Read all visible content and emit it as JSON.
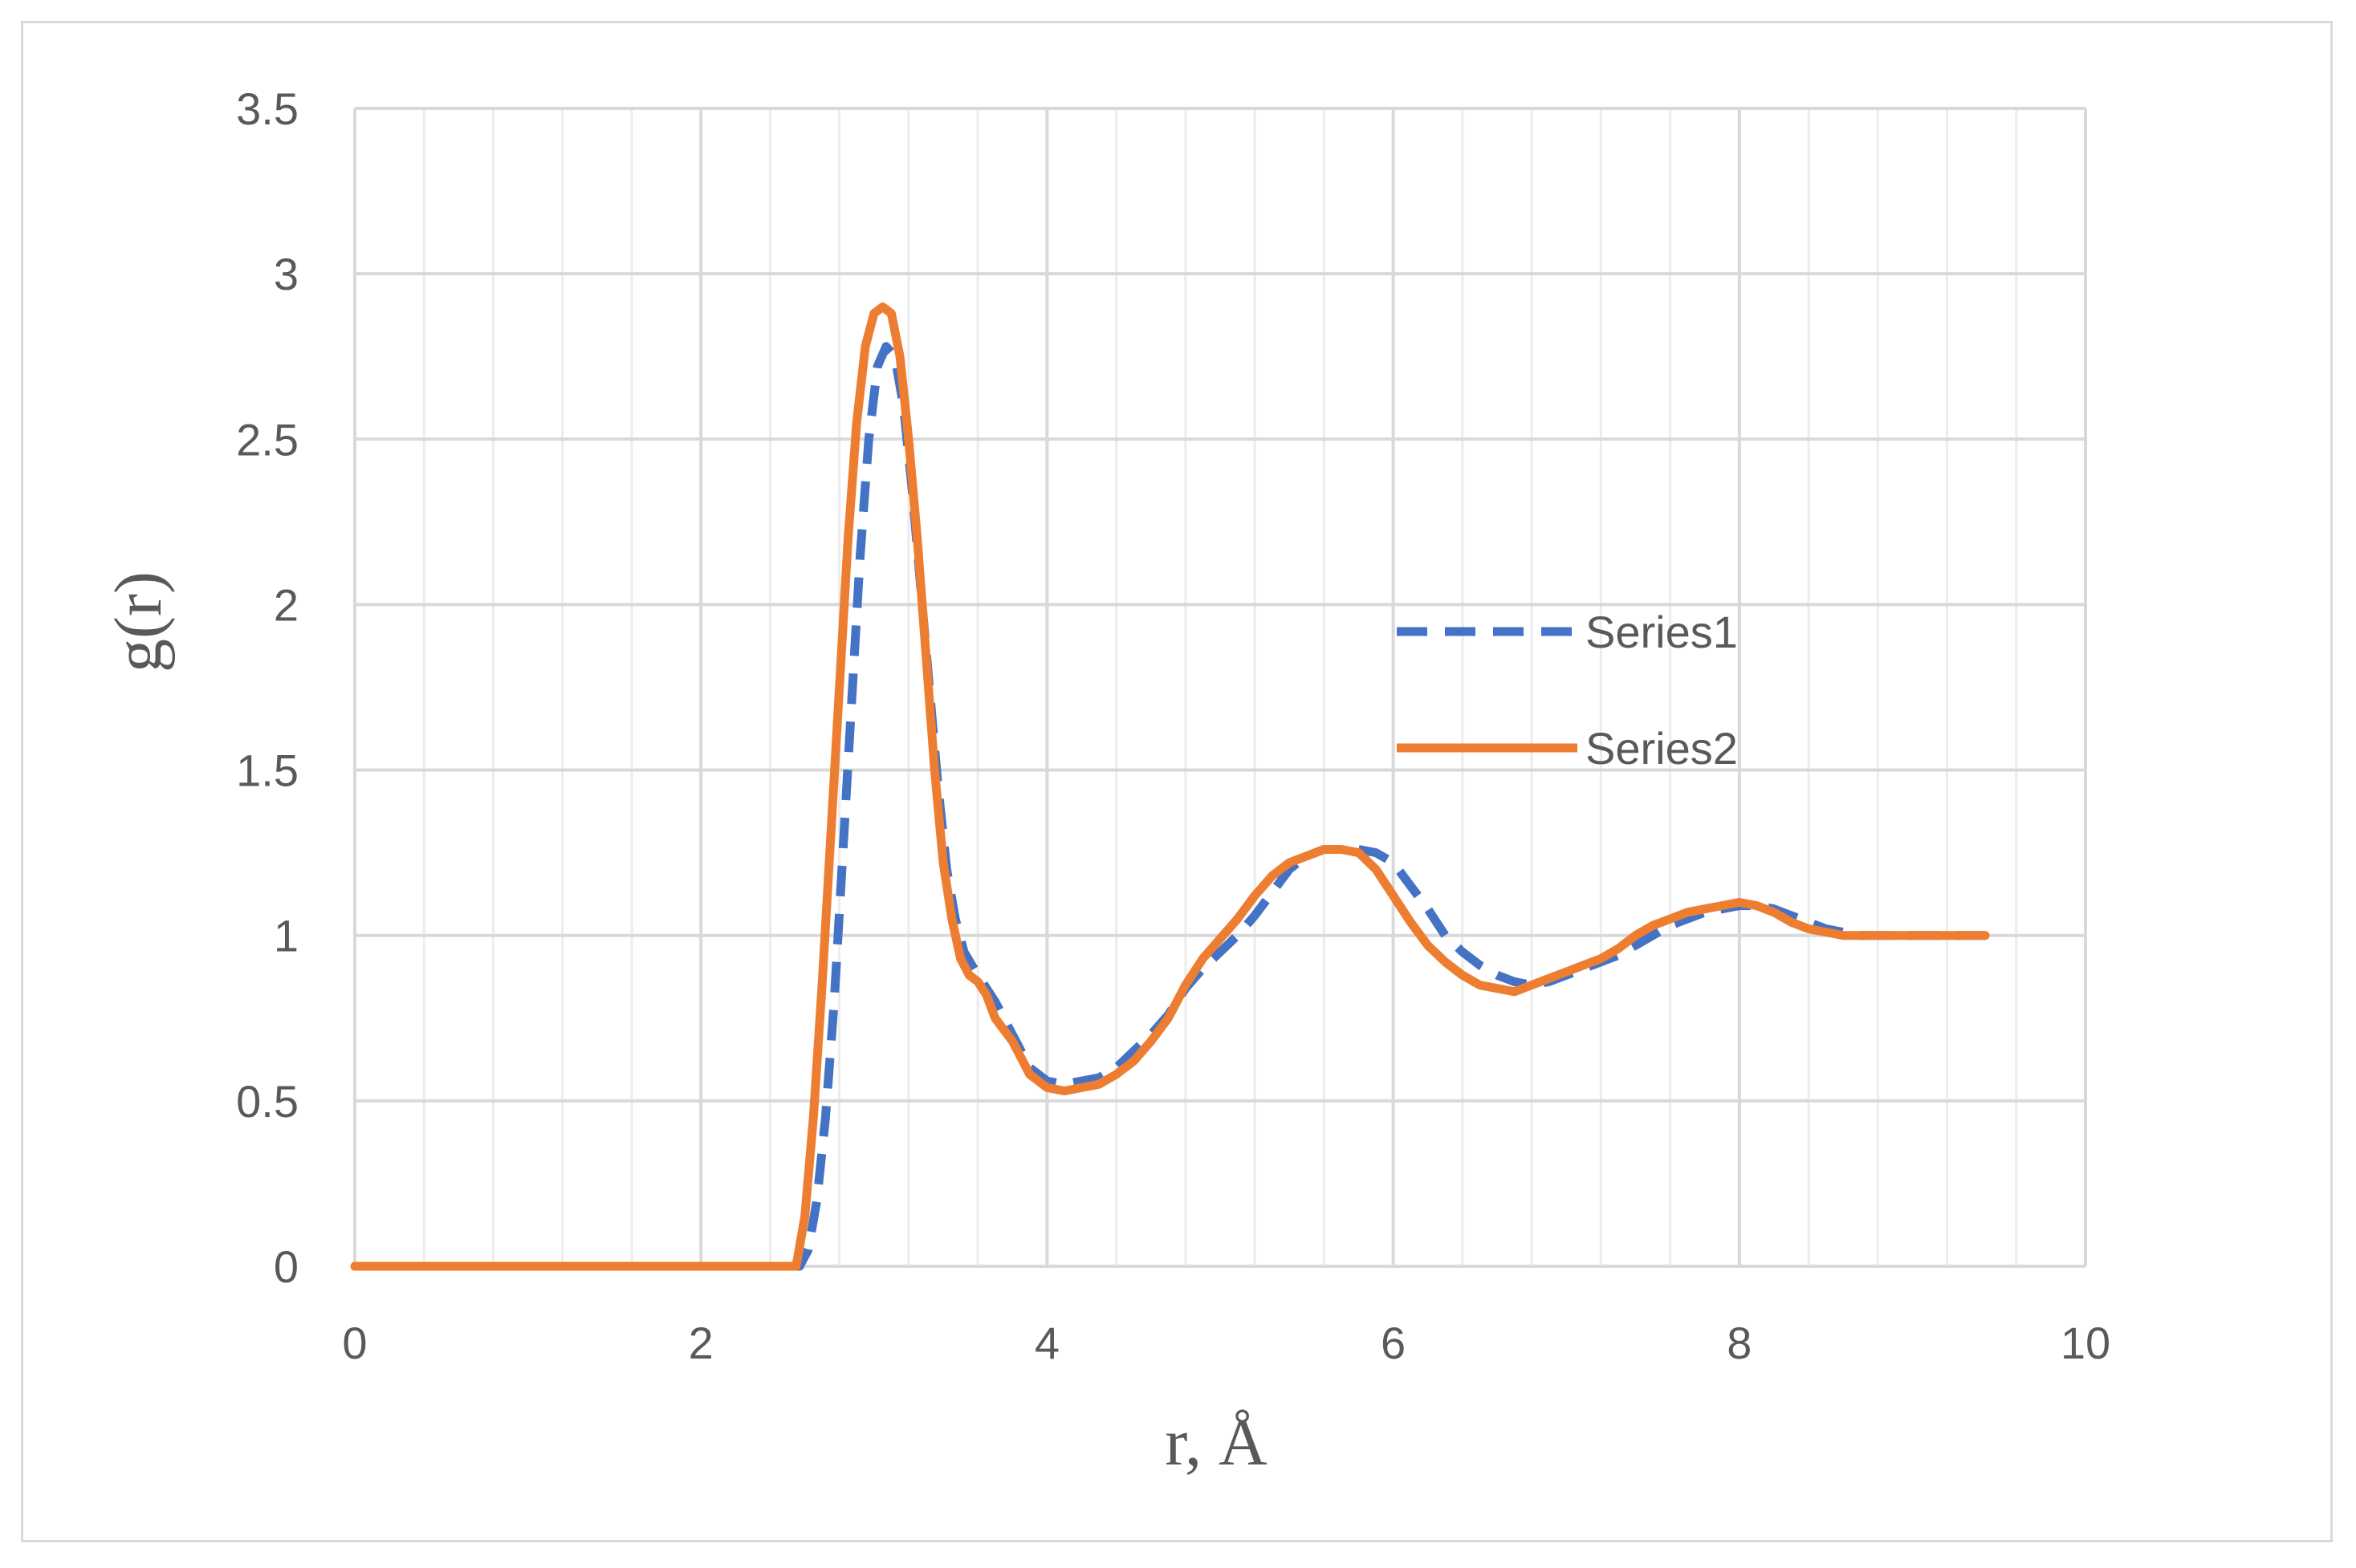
{
  "chart_data": {
    "type": "line",
    "title": "",
    "xlabel": "r, Å",
    "ylabel": "g(r)",
    "xlim": [
      0,
      10
    ],
    "ylim": [
      0,
      3.5
    ],
    "x_ticks": [
      0,
      2,
      4,
      6,
      8,
      10
    ],
    "x_tick_labels": [
      "0",
      "2",
      "4",
      "6",
      "8",
      "10"
    ],
    "y_ticks": [
      0,
      0.5,
      1,
      1.5,
      2,
      2.5,
      3,
      3.5
    ],
    "y_tick_labels": [
      "0",
      "0.5",
      "1",
      "1.5",
      "2",
      "2.5",
      "3",
      "3.5"
    ],
    "x_minor_step": 0.4,
    "grid": true,
    "legend_position": "right",
    "series": [
      {
        "name": "Series1",
        "color": "#4472C4",
        "dash": "dashed",
        "x": [
          0,
          2.57,
          2.62,
          2.67,
          2.72,
          2.77,
          2.82,
          2.87,
          2.92,
          2.97,
          3.02,
          3.07,
          3.12,
          3.17,
          3.22,
          3.27,
          3.32,
          3.37,
          3.42,
          3.47,
          3.52,
          3.6,
          3.7,
          3.8,
          3.9,
          4.0,
          4.1,
          4.2,
          4.3,
          4.4,
          4.5,
          4.6,
          4.7,
          4.8,
          4.9,
          5.0,
          5.1,
          5.2,
          5.3,
          5.4,
          5.5,
          5.6,
          5.7,
          5.8,
          5.9,
          6.0,
          6.1,
          6.2,
          6.3,
          6.4,
          6.5,
          6.6,
          6.7,
          6.8,
          6.9,
          7.0,
          7.1,
          7.2,
          7.3,
          7.4,
          7.5,
          7.6,
          7.7,
          7.8,
          7.9,
          8.0,
          8.1,
          8.2,
          8.3,
          8.4,
          8.5,
          8.6,
          8.7,
          8.8,
          8.9,
          9.0,
          9.1,
          9.2,
          9.3,
          9.42
        ],
        "y": [
          0,
          0,
          0.05,
          0.2,
          0.45,
          0.8,
          1.25,
          1.7,
          2.15,
          2.5,
          2.72,
          2.78,
          2.75,
          2.6,
          2.35,
          2.05,
          1.75,
          1.45,
          1.2,
          1.05,
          0.95,
          0.88,
          0.8,
          0.7,
          0.6,
          0.56,
          0.55,
          0.56,
          0.57,
          0.6,
          0.65,
          0.7,
          0.76,
          0.84,
          0.9,
          0.95,
          1.0,
          1.06,
          1.13,
          1.2,
          1.24,
          1.26,
          1.26,
          1.26,
          1.25,
          1.22,
          1.15,
          1.08,
          1.0,
          0.95,
          0.91,
          0.88,
          0.86,
          0.85,
          0.86,
          0.88,
          0.9,
          0.92,
          0.94,
          0.97,
          1.0,
          1.03,
          1.05,
          1.07,
          1.08,
          1.09,
          1.09,
          1.08,
          1.06,
          1.04,
          1.02,
          1.01,
          1.0,
          1.0,
          1.0,
          1.0,
          1.0,
          1.0,
          1.0,
          1.0
        ]
      },
      {
        "name": "Series2",
        "color": "#ED7D31",
        "dash": "solid",
        "x": [
          0,
          2.55,
          2.6,
          2.65,
          2.7,
          2.75,
          2.8,
          2.85,
          2.9,
          2.95,
          3.0,
          3.05,
          3.1,
          3.15,
          3.2,
          3.25,
          3.3,
          3.35,
          3.4,
          3.45,
          3.5,
          3.55,
          3.6,
          3.65,
          3.7,
          3.8,
          3.9,
          4.0,
          4.1,
          4.2,
          4.3,
          4.4,
          4.5,
          4.6,
          4.7,
          4.8,
          4.9,
          5.0,
          5.1,
          5.2,
          5.3,
          5.4,
          5.5,
          5.6,
          5.7,
          5.8,
          5.9,
          6.0,
          6.1,
          6.2,
          6.3,
          6.4,
          6.5,
          6.6,
          6.7,
          6.8,
          6.9,
          7.0,
          7.1,
          7.2,
          7.3,
          7.4,
          7.5,
          7.6,
          7.7,
          7.8,
          7.9,
          8.0,
          8.1,
          8.2,
          8.3,
          8.4,
          8.5,
          8.6,
          8.7,
          8.8,
          8.9,
          9.0,
          9.1,
          9.2,
          9.3,
          9.42
        ],
        "y": [
          0,
          0,
          0.15,
          0.45,
          0.85,
          1.3,
          1.75,
          2.2,
          2.55,
          2.78,
          2.88,
          2.9,
          2.88,
          2.75,
          2.5,
          2.2,
          1.85,
          1.5,
          1.22,
          1.05,
          0.93,
          0.88,
          0.86,
          0.82,
          0.75,
          0.68,
          0.58,
          0.54,
          0.53,
          0.54,
          0.55,
          0.58,
          0.62,
          0.68,
          0.75,
          0.85,
          0.93,
          0.99,
          1.05,
          1.12,
          1.18,
          1.22,
          1.24,
          1.26,
          1.26,
          1.25,
          1.2,
          1.12,
          1.04,
          0.97,
          0.92,
          0.88,
          0.85,
          0.84,
          0.83,
          0.85,
          0.87,
          0.89,
          0.91,
          0.93,
          0.96,
          1.0,
          1.03,
          1.05,
          1.07,
          1.08,
          1.09,
          1.1,
          1.09,
          1.07,
          1.04,
          1.02,
          1.01,
          1.0,
          1.0,
          1.0,
          1.0,
          1.0,
          1.0,
          1.0,
          1.0,
          1.0
        ]
      }
    ]
  }
}
